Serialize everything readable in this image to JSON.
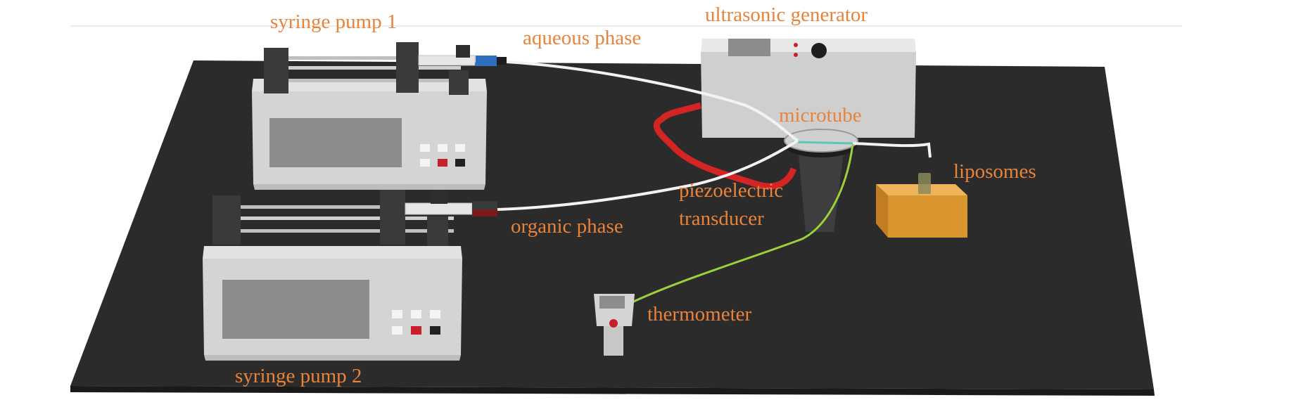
{
  "figure": {
    "colors": {
      "label": "#e8833a",
      "table": "#2b2b2b",
      "device_body": "#cfcfcf",
      "device_front": "#d9d9d9",
      "screen": "#8c8c8c",
      "clamp": "#3a3a3a",
      "tube": "#f2f2f2",
      "transducer_wire": "#d42424",
      "thermo_wire": "#9ad13a",
      "liposome_block": "#d9952e",
      "button_red": "#c8202a",
      "button_black": "#222222",
      "button_white": "#f4f4f4"
    },
    "labels": {
      "syringe_pump_1": "syringe pump 1",
      "syringe_pump_2": "syringe pump 2",
      "aqueous_phase": "aqueous phase",
      "organic_phase": "organic phase",
      "ultrasonic_generator": "ultrasonic generator",
      "microtube": "microtube",
      "piezoelectric_line1": "piezoelectric",
      "piezoelectric_line2": "transducer",
      "liposomes": "liposomes",
      "thermometer": "thermometer"
    }
  }
}
